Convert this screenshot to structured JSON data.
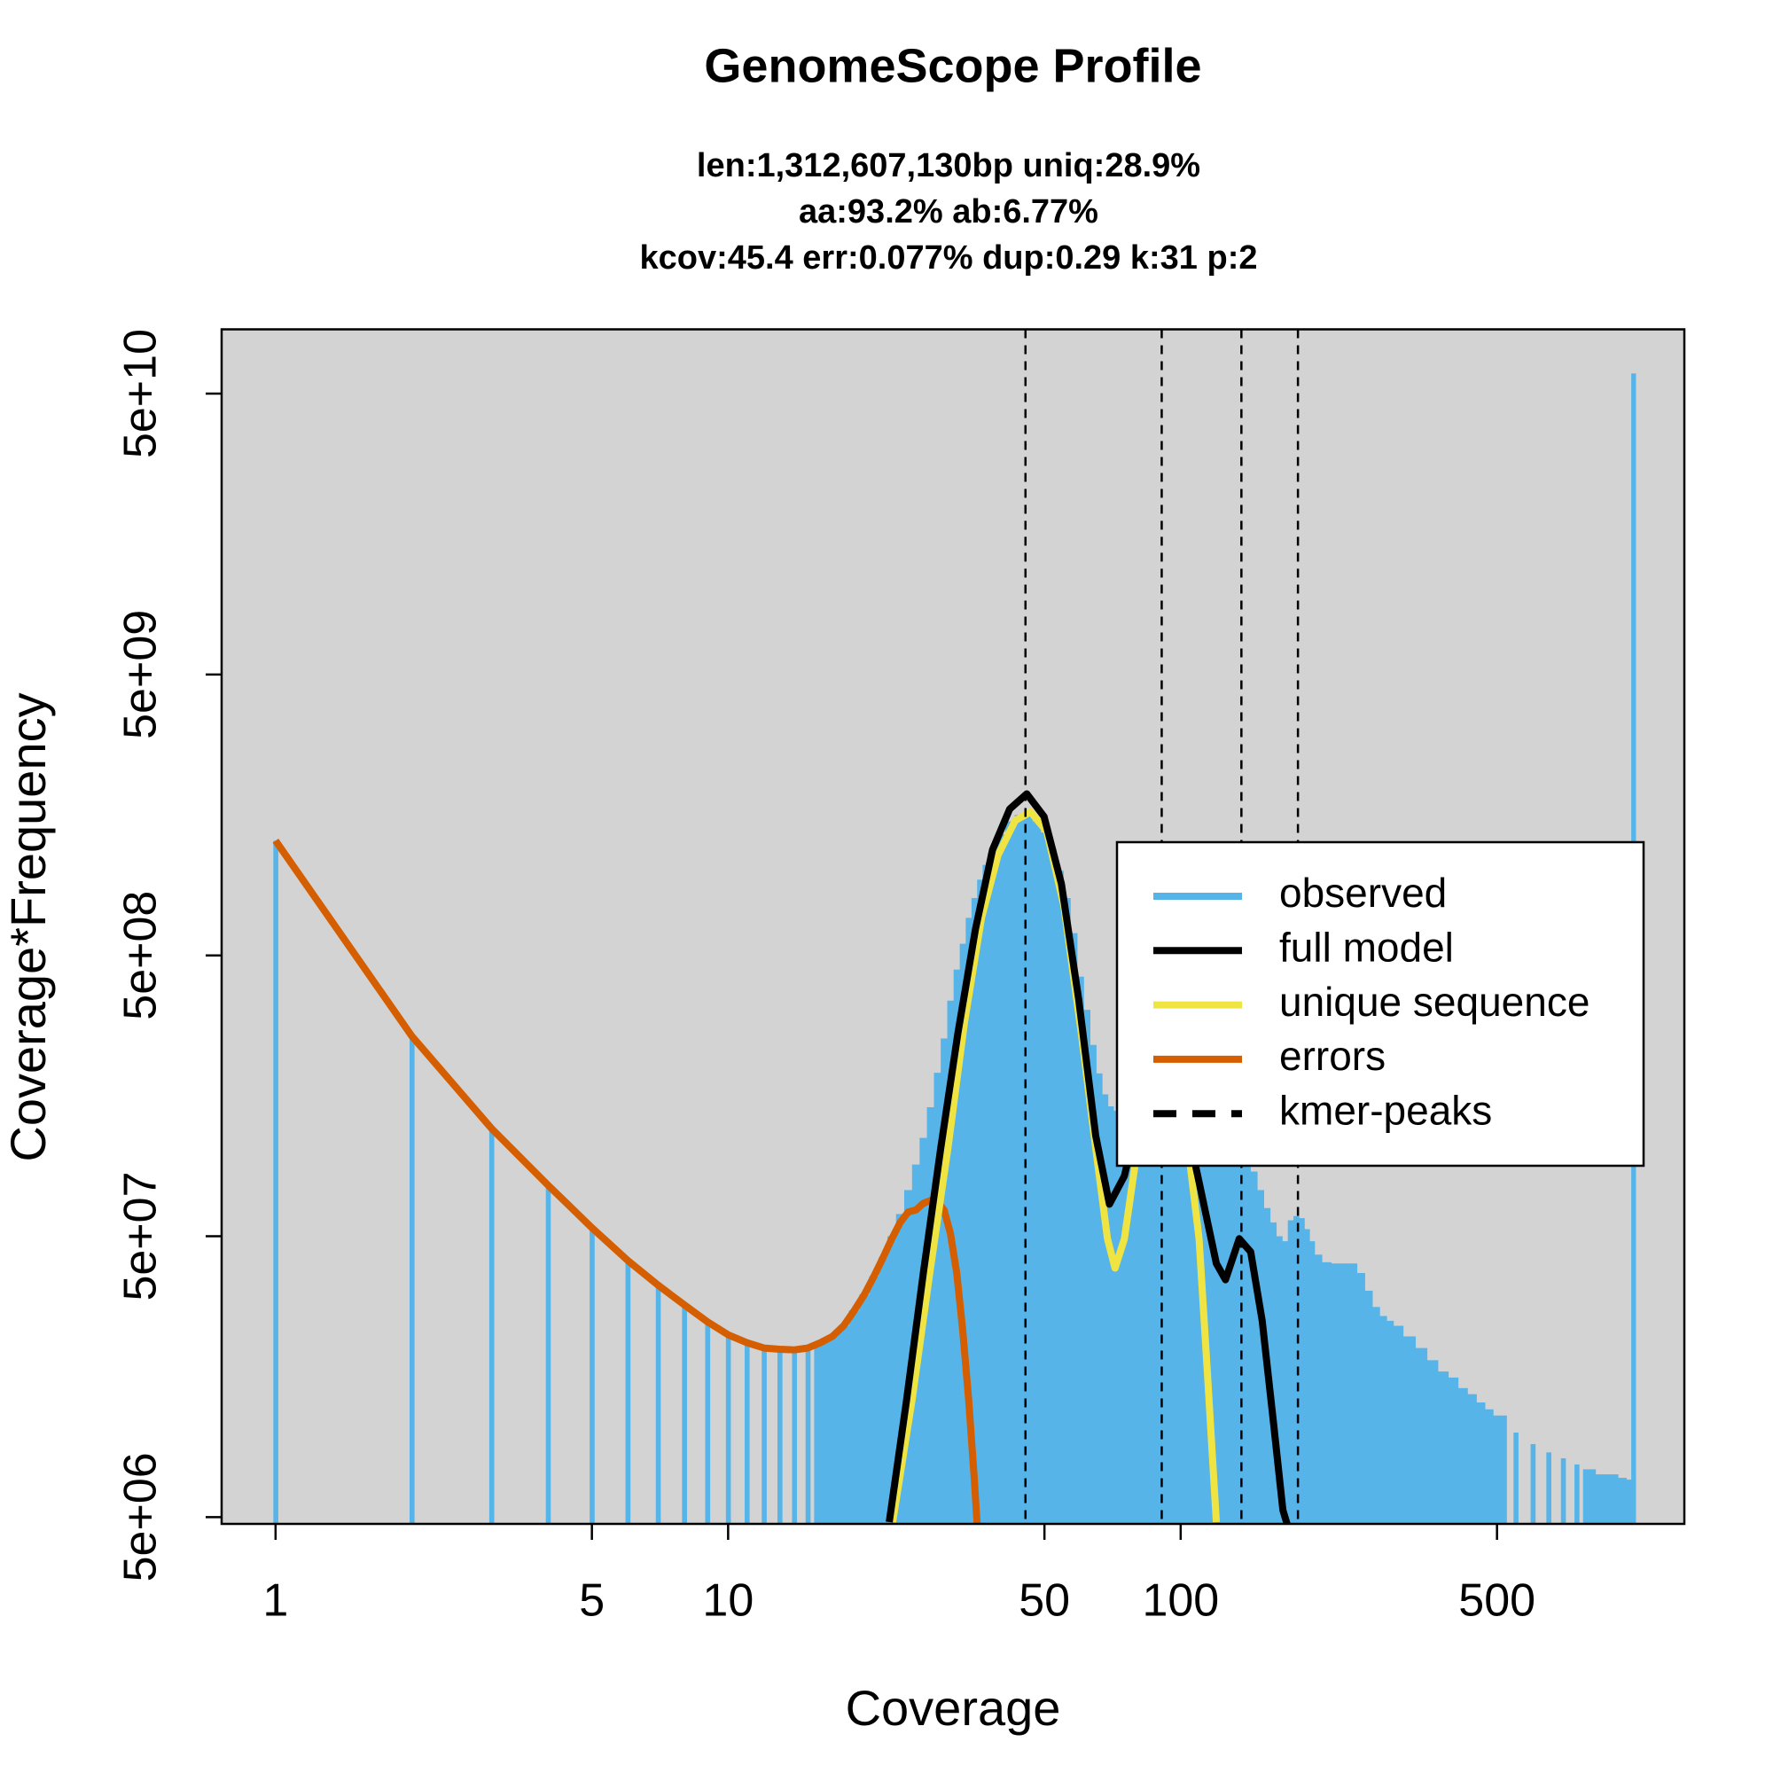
{
  "chart_data": {
    "type": "coverage",
    "title": "GenomeScope Profile",
    "subtitle": [
      "len:1,312,607,130bp uniq:28.9%",
      "aa:93.2% ab:6.77%",
      "kcov:45.4 err:0.077%  dup:0.29  k:31 p:2"
    ],
    "x_label": "Coverage",
    "y_label": "Coverage*Frequency",
    "log_x": true,
    "log_y": true,
    "xlim": [
      0.76,
      1297
    ],
    "ylim": [
      4730000,
      84700000000
    ],
    "xticks": [
      1,
      5,
      10,
      50,
      100,
      500
    ],
    "yticks": [
      {
        "value": 5000000,
        "label": "5e+06"
      },
      {
        "value": 50000000,
        "label": "5e+07"
      },
      {
        "value": 500000000,
        "label": "5e+08"
      },
      {
        "value": 5000000000,
        "label": "5e+09"
      },
      {
        "value": 50000000000,
        "label": "5e+10"
      }
    ],
    "legend": "right",
    "background": "#d3d3d3",
    "series": [
      {
        "name": "observed",
        "color": "#56b4e9",
        "style": "bars",
        "x": [
          1,
          2,
          3,
          4,
          5,
          6,
          7,
          8,
          9,
          10,
          11,
          12,
          13,
          14,
          15,
          16,
          17,
          18,
          19,
          20,
          21,
          22,
          23,
          24,
          25,
          26,
          27,
          28,
          29,
          30,
          31,
          32,
          33,
          34,
          35,
          36,
          37,
          38,
          39,
          40,
          42,
          44,
          46,
          48,
          50,
          52,
          54,
          56,
          58,
          60,
          62,
          64,
          66,
          68,
          70,
          72,
          74,
          76,
          78,
          80,
          82,
          84,
          86,
          88,
          90,
          92,
          94,
          96,
          98,
          100,
          105,
          110,
          115,
          120,
          125,
          130,
          135,
          140,
          145,
          150,
          155,
          160,
          165,
          170,
          175,
          180,
          185,
          190,
          195,
          200,
          210,
          220,
          230,
          240,
          250,
          260,
          270,
          280,
          290,
          300,
          320,
          340,
          360,
          380,
          400,
          420,
          440,
          460,
          480,
          500,
          550,
          600,
          650,
          700,
          750,
          800,
          850,
          900,
          950,
          980,
          1000
        ],
        "values": [
          1280000000,
          258000000,
          121000000,
          76000000,
          53600000,
          41000000,
          33500000,
          28500000,
          24800000,
          22300000,
          20900000,
          20000000,
          19800000,
          19800000,
          20000000,
          20900000,
          22000000,
          24000000,
          27200000,
          31000000,
          36000000,
          42000000,
          50000000,
          60000000,
          73000000,
          90000000,
          112000000,
          144000000,
          191000000,
          253000000,
          345000000,
          445000000,
          550000000,
          680000000,
          800000000,
          930000000,
          1050000000,
          1160000000,
          1270000000,
          1350000000,
          1500000000,
          1580000000,
          1580000000,
          1500000000,
          1370000000,
          1200000000,
          1000000000,
          800000000,
          600000000,
          420000000,
          320000000,
          240000000,
          190000000,
          160000000,
          145000000,
          140000000,
          142000000,
          150000000,
          170000000,
          190000000,
          210000000,
          225000000,
          232000000,
          235000000,
          230000000,
          222000000,
          210000000,
          195000000,
          178000000,
          160000000,
          125000000,
          105000000,
          95000000,
          93000000,
          96000000,
          100000000,
          100000000,
          95000000,
          85000000,
          73000000,
          63000000,
          56000000,
          50000000,
          48000000,
          57000000,
          59000000,
          58000000,
          53000000,
          48000000,
          43000000,
          40400000,
          40000000,
          40000000,
          40000000,
          37000000,
          32000000,
          28000000,
          26000000,
          25000000,
          24000000,
          22000000,
          20000000,
          18100000,
          16500000,
          15700000,
          14400000,
          13700000,
          12800000,
          12100000,
          11500000,
          10000000,
          9100000,
          8500000,
          8100000,
          7700000,
          7400000,
          7100000,
          7100000,
          6900000,
          6800000,
          59000000000
        ]
      },
      {
        "name": "full model",
        "color": "#000000",
        "style": "line",
        "x": [
          22.7,
          24.8,
          27.0,
          29.5,
          32.2,
          35.2,
          38.4,
          41.9,
          45.7,
          49.9,
          54.5,
          59.5,
          64.9,
          69.6,
          75.1,
          82.0,
          90.0,
          100.6,
          109.8,
          119.9,
          125.6,
          134.7,
          142.8,
          151.4,
          160.4,
          168.2,
          172
        ],
        "values": [
          4800000,
          13100000,
          37000000,
          103000000,
          265000000,
          620000000,
          1190000000,
          1660000000,
          1880000000,
          1560000000,
          900000000,
          350000000,
          114000000,
          65000000,
          82000000,
          150000000,
          200000000,
          150000000,
          78000000,
          40000000,
          35000000,
          49000000,
          44000000,
          25000000,
          10800000,
          5300000,
          4700000
        ]
      },
      {
        "name": "unique sequence",
        "color": "#f0e442",
        "style": "line",
        "x": [
          23.1,
          25.5,
          27.9,
          30.6,
          33.3,
          36.3,
          39.5,
          43.1,
          46.6,
          50.6,
          55.2,
          60.3,
          64.9,
          68.9,
          71.6,
          75.1,
          79.6,
          84,
          90.4,
          97.9,
          103.9,
          109.8,
          114.7,
          119.9
        ],
        "values": [
          4800000,
          13100000,
          37000000,
          103000000,
          290000000,
          680000000,
          1140000000,
          1510000000,
          1620000000,
          1380000000,
          750000000,
          265000000,
          103000000,
          49000000,
          38500000,
          49000000,
          94000000,
          150000000,
          200000000,
          160000000,
          103000000,
          49000000,
          15800000,
          4800000
        ]
      },
      {
        "name": "errors",
        "color": "#d55e00",
        "style": "line",
        "x": [
          1,
          2,
          3,
          4,
          5,
          6,
          7,
          8,
          9,
          10,
          11,
          12,
          13,
          14,
          15,
          16,
          17,
          18,
          19,
          20,
          21,
          22,
          23,
          24,
          25,
          26,
          27,
          28,
          29,
          30,
          31,
          32,
          33,
          34,
          35,
          35.5
        ],
        "values": [
          1280000000,
          258000000,
          121000000,
          76000000,
          53600000,
          41000000,
          33500000,
          28500000,
          24800000,
          22300000,
          20900000,
          20000000,
          19800000,
          19700000,
          20000000,
          20900000,
          22000000,
          24000000,
          27200000,
          31000000,
          36000000,
          42000000,
          49000000,
          56000000,
          61000000,
          62000000,
          65500000,
          67000000,
          66500000,
          62000000,
          51000000,
          37000000,
          23000000,
          13100000,
          6800000,
          4700000
        ]
      }
    ],
    "peaks": {
      "name": "kmer-peaks",
      "color": "#000000",
      "x": [
        45.4,
        90.8,
        136.2,
        181.6
      ]
    }
  }
}
